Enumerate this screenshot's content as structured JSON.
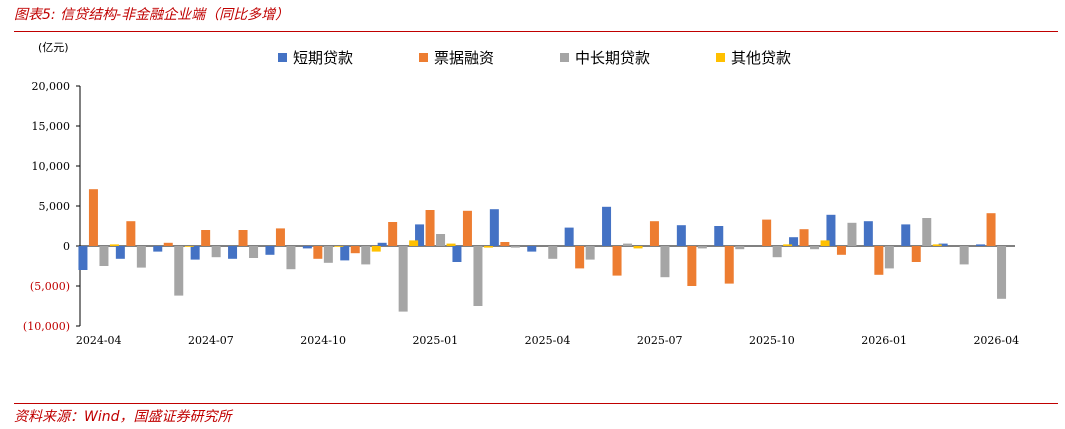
{
  "figure": {
    "title": "图表5:  信贷结构-非金融企业端（同比多增）",
    "unit": "(亿元)",
    "source": "资料来源：Wind，国盛证券研究所"
  },
  "colors": {
    "short_term": "#4472c4",
    "bill": "#ed7d31",
    "medium_long": "#a5a5a5",
    "other": "#ffc000",
    "brand_red": "#c00000"
  },
  "chart_data": {
    "type": "bar",
    "ylim": [
      -10000,
      20000
    ],
    "yticks": [
      -10000,
      -5000,
      0,
      5000,
      10000,
      15000,
      20000
    ],
    "ytick_labels": [
      "(10,000)",
      "(5,000)",
      "0",
      "5,000",
      "10,000",
      "15,000",
      "20,000"
    ],
    "negative_label_color": "#c00000",
    "grid": false,
    "legend": "top",
    "categories": [
      "2024-04",
      "2024-05",
      "2024-06",
      "2024-07",
      "2024-08",
      "2024-09",
      "2024-10",
      "2024-11",
      "2024-12",
      "2025-01",
      "2025-02",
      "2025-03",
      "2025-04",
      "2025-05",
      "2025-06",
      "2025-07",
      "2025-08",
      "2025-09",
      "2025-10",
      "2025-11",
      "2025-12",
      "2026-01",
      "2026-02",
      "2026-03",
      "2026-04"
    ],
    "shown_xticks": [
      "2024-04",
      "2024-07",
      "2024-10",
      "2025-01",
      "2025-04",
      "2025-07",
      "2025-10",
      "2026-01",
      "2026-04"
    ],
    "series": [
      {
        "name": "短期贷款",
        "key": "short_term",
        "values": [
          -3000,
          -1600,
          -700,
          -1700,
          -1600,
          -1100,
          -300,
          -1800,
          400,
          2700,
          -2000,
          4600,
          -700,
          2300,
          4900,
          0,
          2600,
          2500,
          0,
          1100,
          3900,
          3100,
          2700,
          300,
          200
        ]
      },
      {
        "name": "票据融资",
        "key": "bill",
        "values": [
          7100,
          3100,
          400,
          2000,
          2000,
          2200,
          -1600,
          -900,
          3000,
          4500,
          4400,
          500,
          0,
          -2800,
          -3700,
          3100,
          -5000,
          -4700,
          3300,
          2100,
          -1100,
          -3600,
          -2000,
          0,
          4100
        ]
      },
      {
        "name": "中长期贷款",
        "key": "medium_long",
        "values": [
          -2500,
          -2700,
          -6200,
          -1400,
          -1500,
          -2900,
          -2100,
          -2300,
          -8200,
          1500,
          -7500,
          -200,
          -1600,
          -1700,
          300,
          -3900,
          -300,
          -400,
          -1400,
          -400,
          2900,
          -2800,
          3500,
          -2300,
          -6600
        ]
      },
      {
        "name": "其他贷款",
        "key": "other",
        "values": [
          200,
          0,
          -100,
          0,
          0,
          0,
          -100,
          -700,
          700,
          300,
          -200,
          0,
          0,
          0,
          -300,
          0,
          0,
          0,
          200,
          700,
          0,
          0,
          200,
          0,
          0
        ]
      }
    ]
  }
}
